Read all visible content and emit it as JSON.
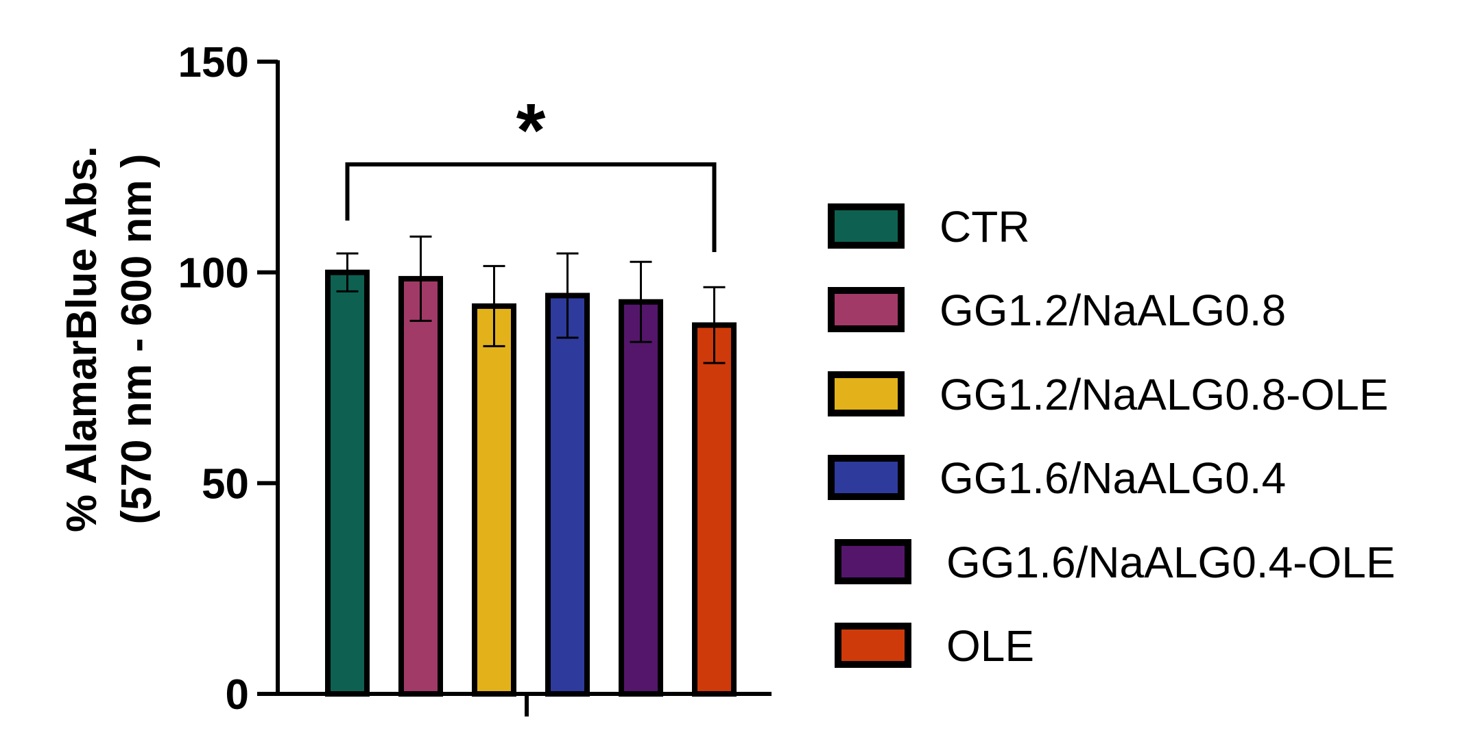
{
  "chart_data": {
    "type": "bar",
    "title": "",
    "xlabel": "",
    "ylabel": [
      "% AlamarBlue Abs.",
      "(570 nm - 600 nm )"
    ],
    "ylim": [
      0,
      150
    ],
    "yticks": [
      0,
      50,
      100,
      150
    ],
    "categories": [
      "CTR",
      "GG1.2/NaALG0.8",
      "GG1.2/NaALG0.8-OLE",
      "GG1.6/NaALG0.4",
      "GG1.6/NaALG0.4-OLE",
      "OLE"
    ],
    "values": [
      100,
      98.5,
      92,
      94.5,
      93,
      87.5
    ],
    "errors": [
      4.5,
      10,
      9.5,
      10,
      9.5,
      9
    ],
    "colors": [
      "#0e6151",
      "#a23a67",
      "#e3b21b",
      "#2e3b9c",
      "#54166b",
      "#cf3a0a"
    ],
    "legend_position": "right",
    "grid": false,
    "significance": {
      "from": "CTR",
      "to": "OLE",
      "label": "*"
    }
  }
}
